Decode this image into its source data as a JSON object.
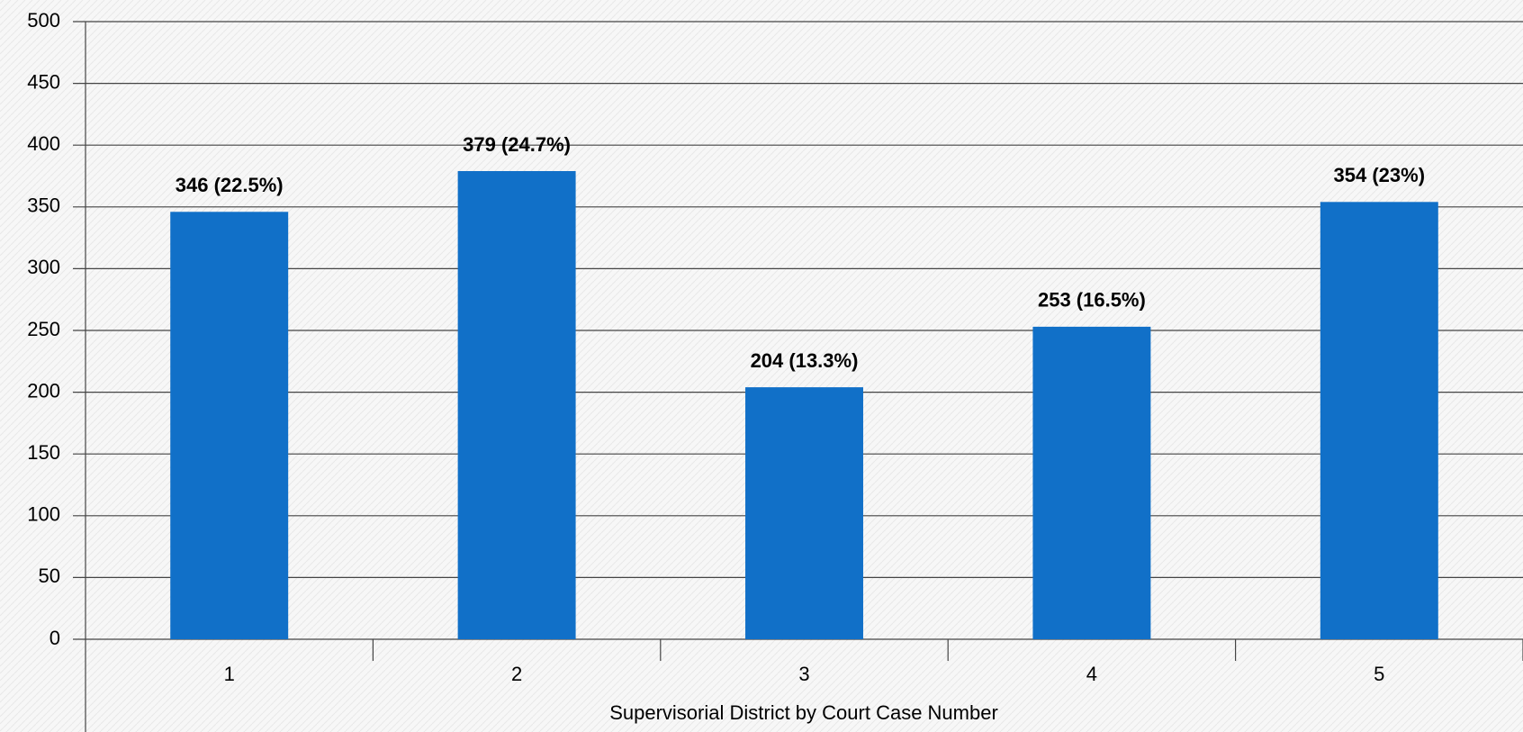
{
  "chart_data": {
    "type": "bar",
    "x_label": "Supervisorial District by Court Case Number",
    "categories": [
      "1",
      "2",
      "3",
      "4",
      "5"
    ],
    "values": [
      346,
      379,
      204,
      253,
      354
    ],
    "value_labels": [
      "346 (22.5%)",
      "379 (24.7%)",
      "204 (13.3%)",
      "253 (16.5%)",
      "354 (23%)"
    ],
    "color": "#1170c8",
    "ylim": [
      0,
      500
    ],
    "yticks": [
      0,
      50,
      100,
      150,
      200,
      250,
      300,
      350,
      400,
      450,
      500
    ],
    "grid": true
  }
}
